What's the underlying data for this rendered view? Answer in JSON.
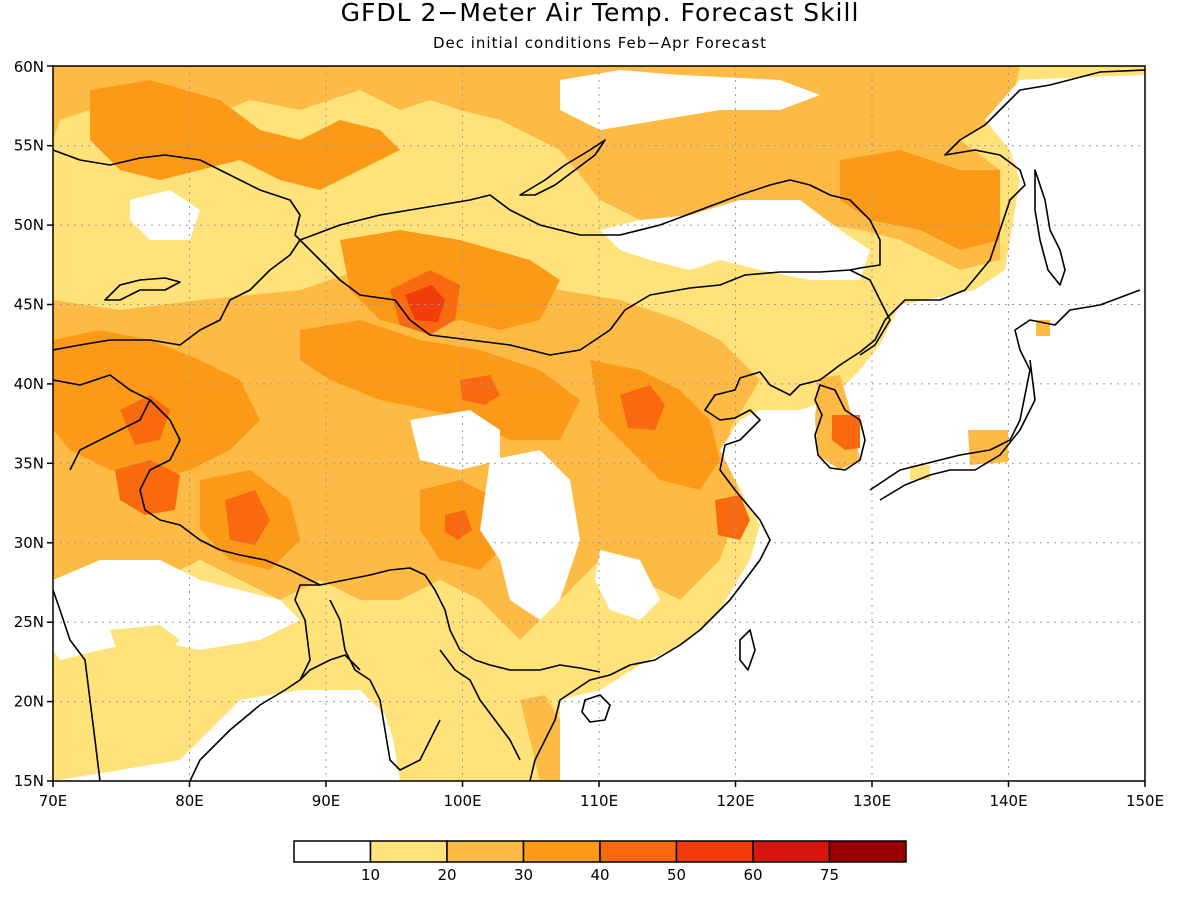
{
  "title": "GFDL 2−Meter Air Temp. Forecast Skill",
  "subtitle": "Dec initial conditions  Feb−Apr Forecast",
  "map": {
    "lon_range": [
      70,
      150
    ],
    "lat_range": [
      15,
      60
    ],
    "lon_labels": [
      "70E",
      "80E",
      "90E",
      "100E",
      "110E",
      "120E",
      "130E",
      "140E",
      "150E"
    ],
    "lat_labels": [
      "15N",
      "20N",
      "25N",
      "30N",
      "35N",
      "40N",
      "45N",
      "50N",
      "55N",
      "60N"
    ],
    "grid": "dotted"
  },
  "legend": {
    "colors": [
      "#ffffff",
      "#ffe37a",
      "#fdbb45",
      "#fc9a18",
      "#f9690f",
      "#f23c0c",
      "#d71610",
      "#9b0000"
    ],
    "labels": [
      "10",
      "20",
      "30",
      "40",
      "50",
      "60",
      "75"
    ]
  }
}
